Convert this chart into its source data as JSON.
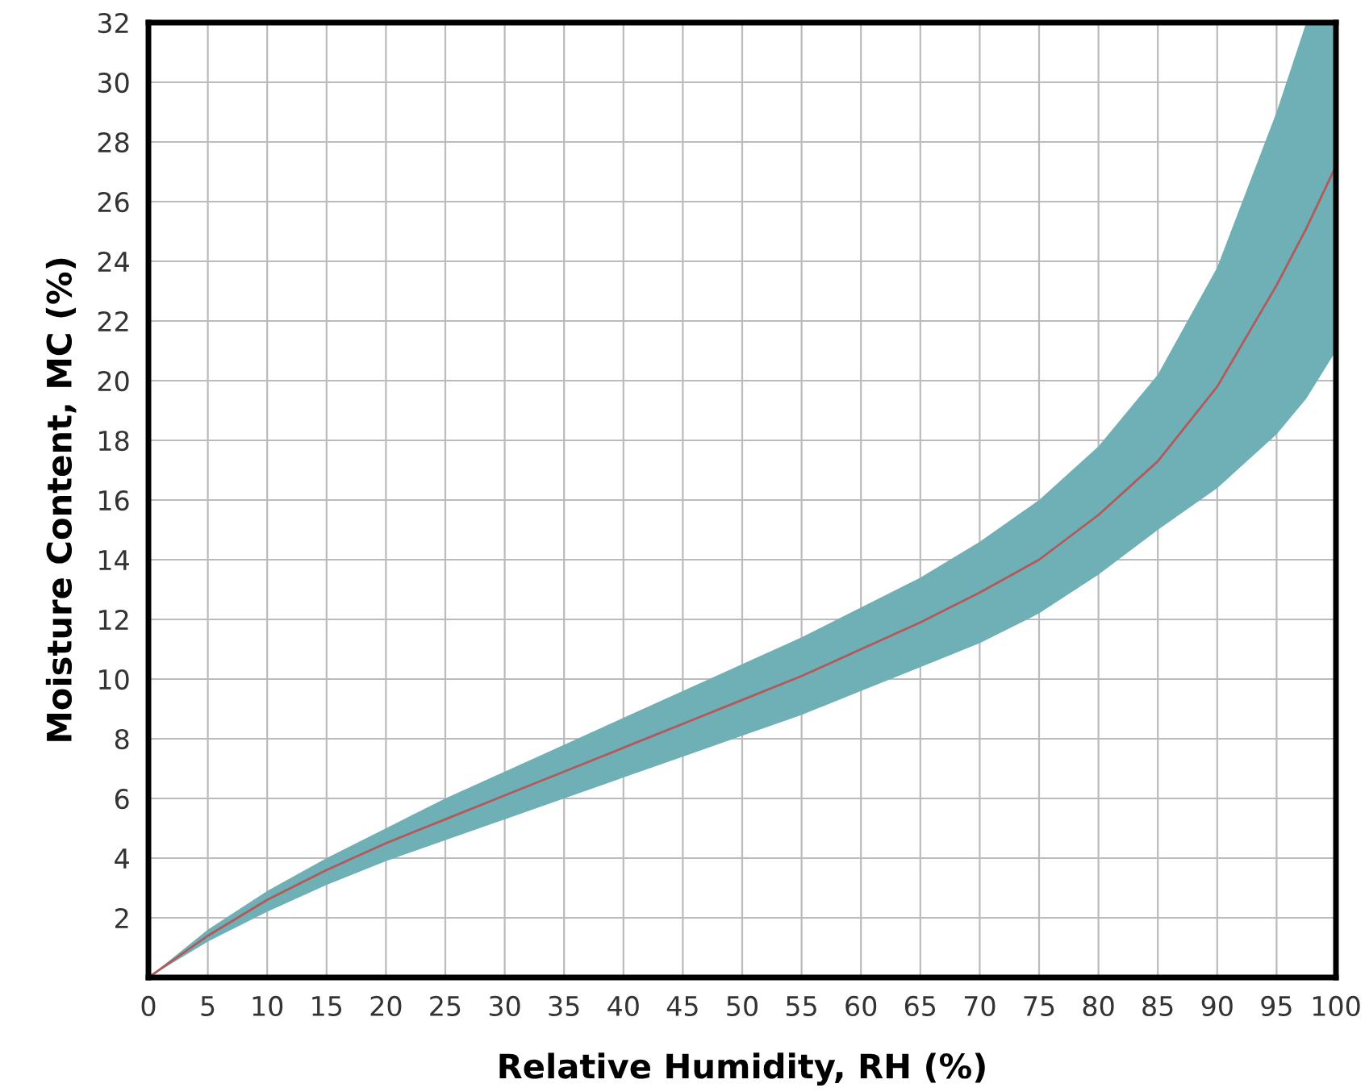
{
  "chart_data": {
    "type": "line",
    "xlabel": "Relative Humidity, RH (%)",
    "ylabel": "Moisture Content, MC (%)",
    "x": [
      0,
      5,
      10,
      15,
      20,
      25,
      30,
      35,
      40,
      45,
      50,
      55,
      60,
      65,
      70,
      75,
      80,
      85,
      90,
      95,
      97.5,
      100
    ],
    "series": [
      {
        "color": "#6eb0b6",
        "values": [
          null,
          null,
          null,
          null,
          null,
          null,
          null,
          null,
          null,
          null,
          null,
          null,
          null,
          null,
          null,
          null,
          null,
          null,
          null,
          null,
          null,
          null
        ],
        "lower": [
          0,
          1.2,
          2.2,
          3.1,
          3.9,
          4.6,
          5.3,
          6.0,
          6.7,
          7.4,
          8.1,
          8.8,
          9.6,
          10.4,
          11.2,
          12.2,
          13.5,
          15.0,
          16.4,
          18.2,
          19.4,
          21.0
        ],
        "upper": [
          0,
          1.6,
          2.9,
          4.0,
          5.0,
          6.0,
          6.9,
          7.8,
          8.7,
          9.6,
          10.5,
          11.4,
          12.4,
          13.4,
          14.6,
          16.0,
          17.8,
          20.2,
          23.8,
          29.0,
          32,
          32
        ]
      },
      {
        "color": "#b5585a",
        "values": [
          0,
          1.4,
          2.6,
          3.6,
          4.5,
          5.3,
          6.1,
          6.9,
          7.7,
          8.5,
          9.3,
          10.1,
          11.0,
          11.9,
          12.9,
          14.0,
          15.5,
          17.3,
          19.8,
          23.2,
          25.1,
          27.2
        ]
      }
    ],
    "xlim": [
      0,
      100
    ],
    "ylim": [
      0,
      32
    ],
    "xticks": [
      0,
      5,
      10,
      15,
      20,
      25,
      30,
      35,
      40,
      45,
      50,
      55,
      60,
      65,
      70,
      75,
      80,
      85,
      90,
      95,
      100
    ],
    "yticks": [
      {
        "value": 0,
        "label": null
      },
      2,
      4,
      6,
      8,
      10,
      12,
      14,
      16,
      18,
      20,
      22,
      24,
      26,
      28,
      30,
      32
    ],
    "grid": true
  }
}
